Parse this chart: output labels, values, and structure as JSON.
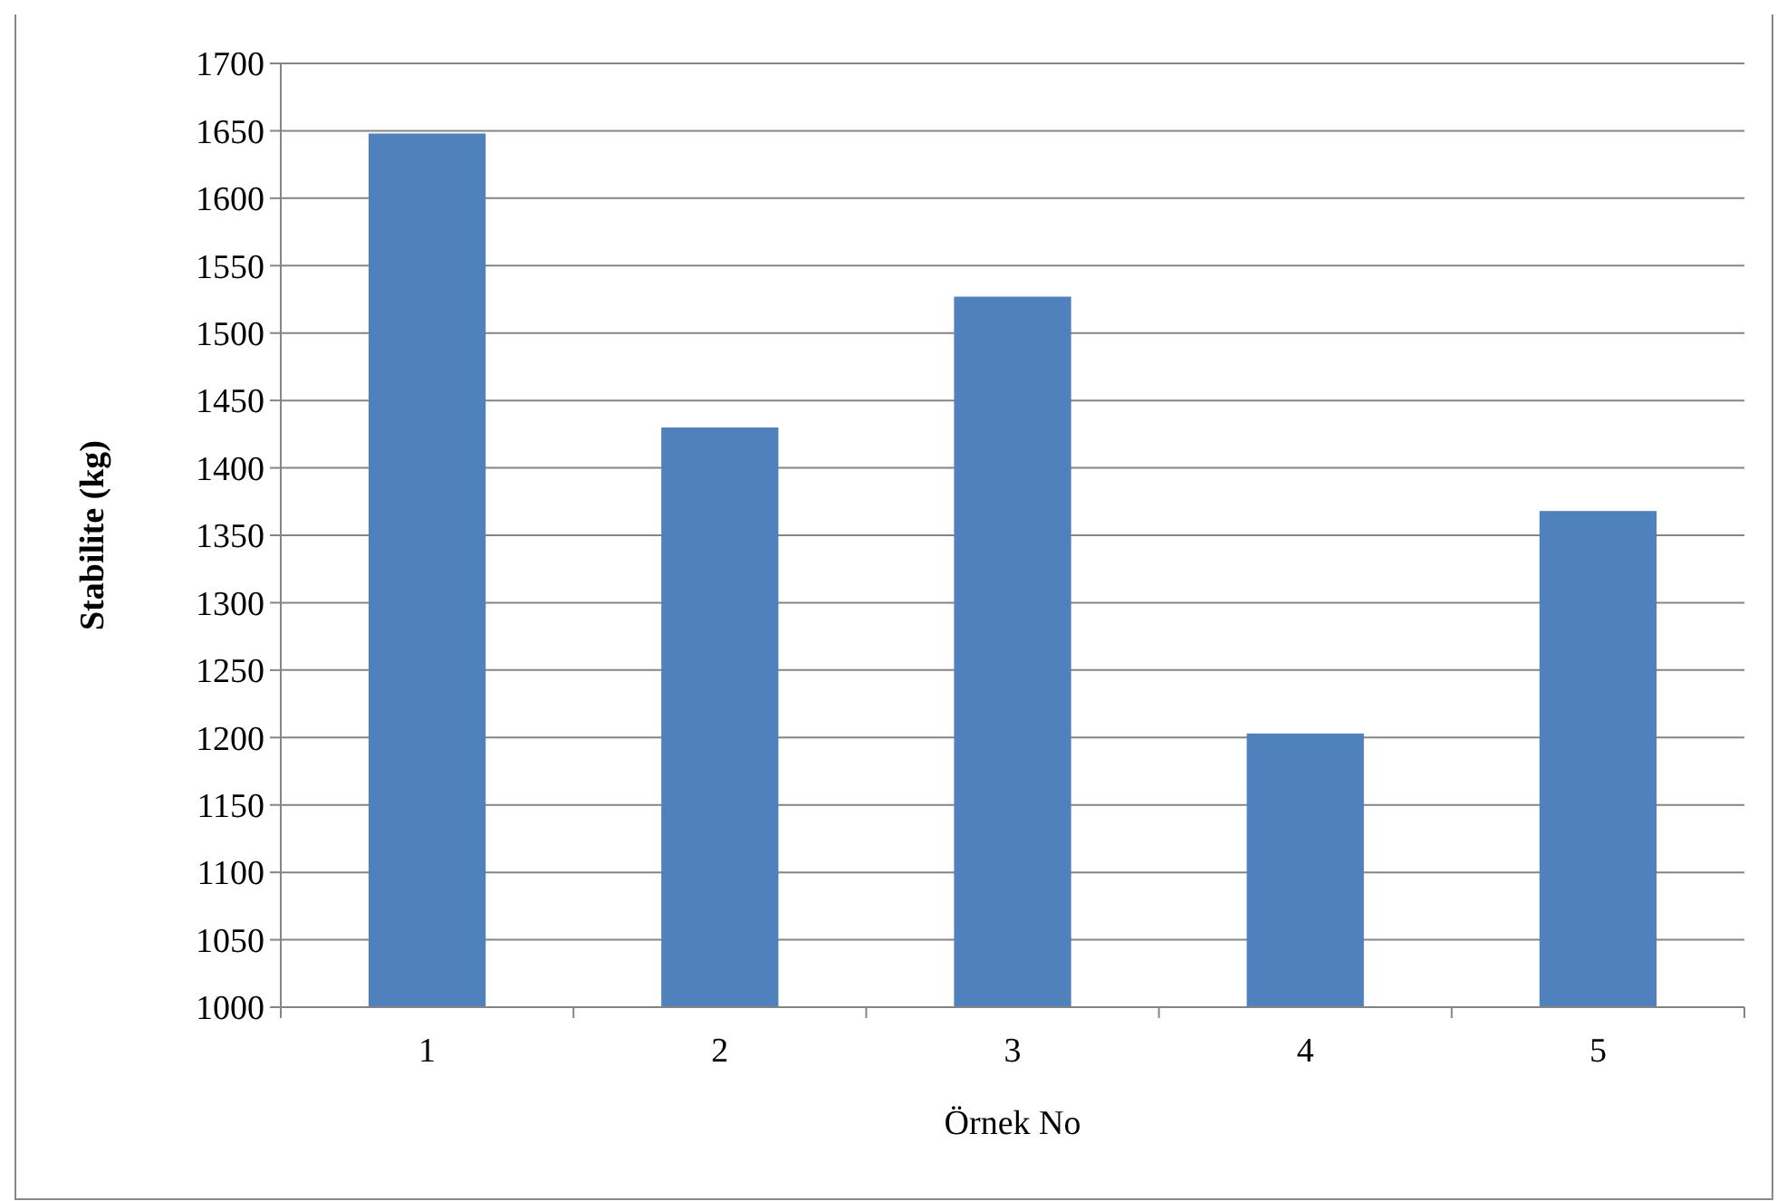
{
  "chart_data": {
    "type": "bar",
    "xlabel": "Örnek No",
    "ylabel": "Stabilite (kg)",
    "categories": [
      "1",
      "2",
      "3",
      "4",
      "5"
    ],
    "values": [
      1648,
      1430,
      1527,
      1203,
      1368
    ],
    "color": "#4f81bd",
    "ylim": [
      1000,
      1700
    ],
    "yticks": [
      1000,
      1050,
      1100,
      1150,
      1200,
      1250,
      1300,
      1350,
      1400,
      1450,
      1500,
      1550,
      1600,
      1650,
      1700
    ],
    "grid": "y"
  }
}
